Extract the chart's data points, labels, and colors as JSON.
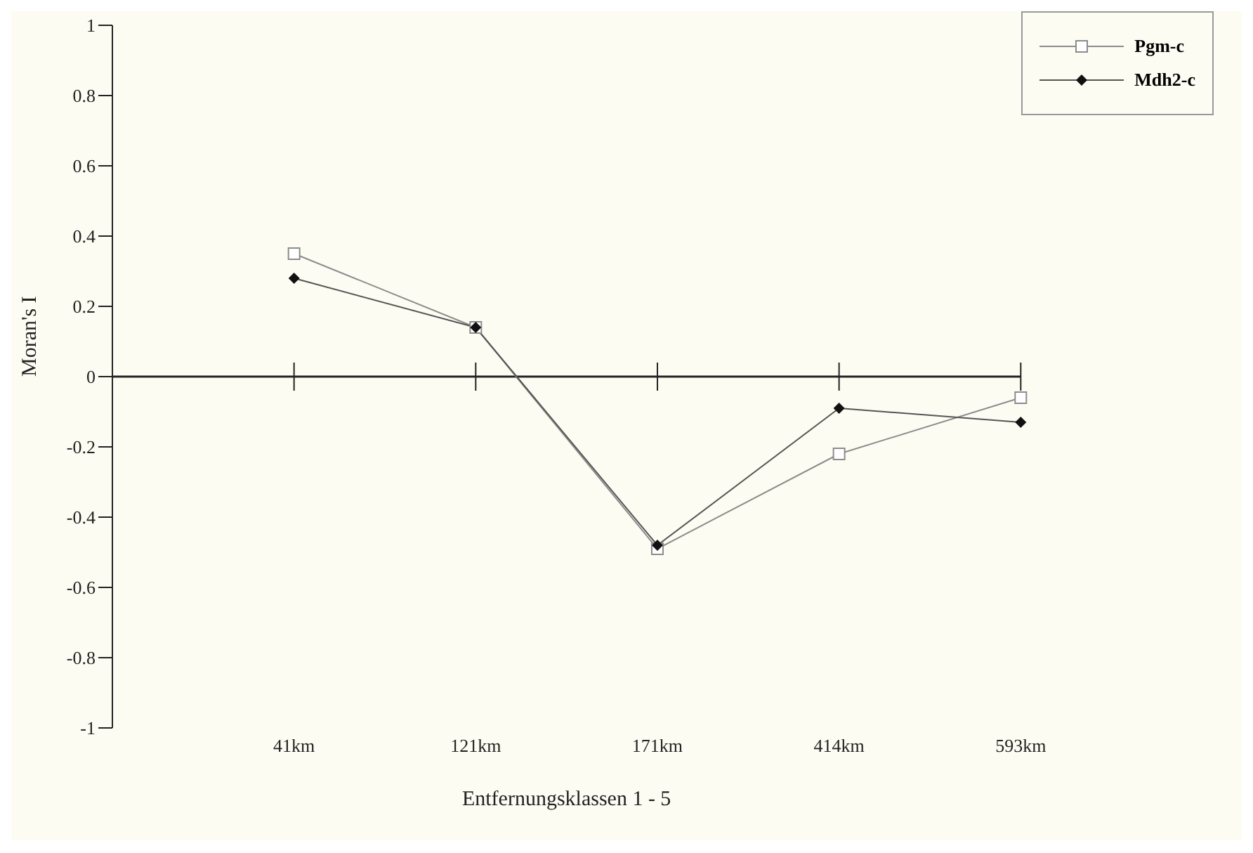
{
  "chart_data": {
    "type": "line",
    "xlabel": "Entfernungsklassen 1 - 5",
    "ylabel": "Moran's I",
    "categories": [
      "41km",
      "121km",
      "171km",
      "414km",
      "593km"
    ],
    "series": [
      {
        "name": "Pgm-c",
        "color": "#8c8c8c",
        "marker": "square",
        "values": [
          0.35,
          0.14,
          -0.49,
          -0.22,
          -0.06
        ]
      },
      {
        "name": "Mdh2-c",
        "color": "#555555",
        "marker": "diamond",
        "values": [
          0.28,
          0.14,
          -0.48,
          -0.09,
          -0.13
        ]
      }
    ],
    "ylim": [
      -1,
      1
    ],
    "yticks": [
      -1,
      -0.8,
      -0.6,
      -0.4,
      -0.2,
      0,
      0.2,
      0.4,
      0.6,
      0.8,
      1
    ],
    "legend": "top right"
  }
}
